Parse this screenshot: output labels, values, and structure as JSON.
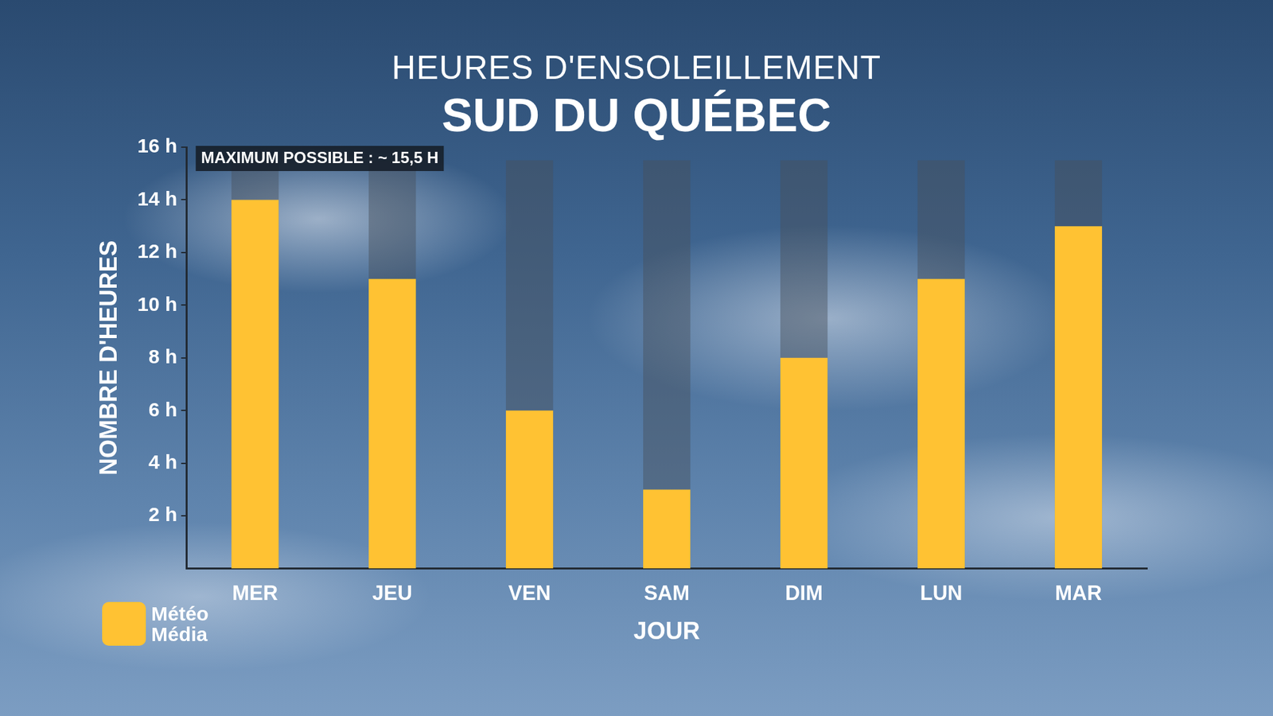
{
  "chart_data": {
    "type": "bar",
    "title": "HEURES D'ENSOLEILLEMENT",
    "subtitle": "SUD DU QUÉBEC",
    "x_label": "JOUR",
    "y_label": "NOMBRE D'HEURES",
    "categories": [
      "MER",
      "JEU",
      "VEN",
      "SAM",
      "DIM",
      "LUN",
      "MAR"
    ],
    "values": [
      14,
      11,
      6,
      3,
      8,
      11,
      13
    ],
    "color": "#FFC233",
    "max_possible": 15.5,
    "annotation": "MAXIMUM POSSIBLE : ~ 15,5 H",
    "source": "Météo Média",
    "ylim": [
      0,
      16
    ],
    "yticks": [
      {
        "value": 2,
        "label": "2 h"
      },
      {
        "value": 4,
        "label": "4 h"
      },
      {
        "value": 6,
        "label": "6 h"
      },
      {
        "value": 8,
        "label": "8 h"
      },
      {
        "value": 10,
        "label": "10 h"
      },
      {
        "value": 12,
        "label": "12 h"
      },
      {
        "value": 14,
        "label": "14 h"
      },
      {
        "value": 16,
        "label": "16 h"
      }
    ],
    "grid": false
  }
}
